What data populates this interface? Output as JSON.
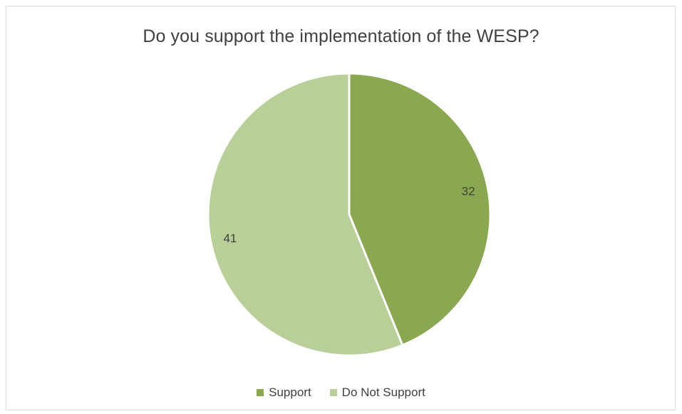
{
  "chart_data": {
    "type": "pie",
    "title": "Do you support the implementation of the WESP?",
    "categories": [
      "Support",
      "Do Not Support"
    ],
    "values": [
      32,
      41
    ],
    "colors": [
      "#8aa84f",
      "#b9cf98"
    ],
    "data_labels": [
      "32",
      "41"
    ],
    "legend_position": "bottom"
  }
}
